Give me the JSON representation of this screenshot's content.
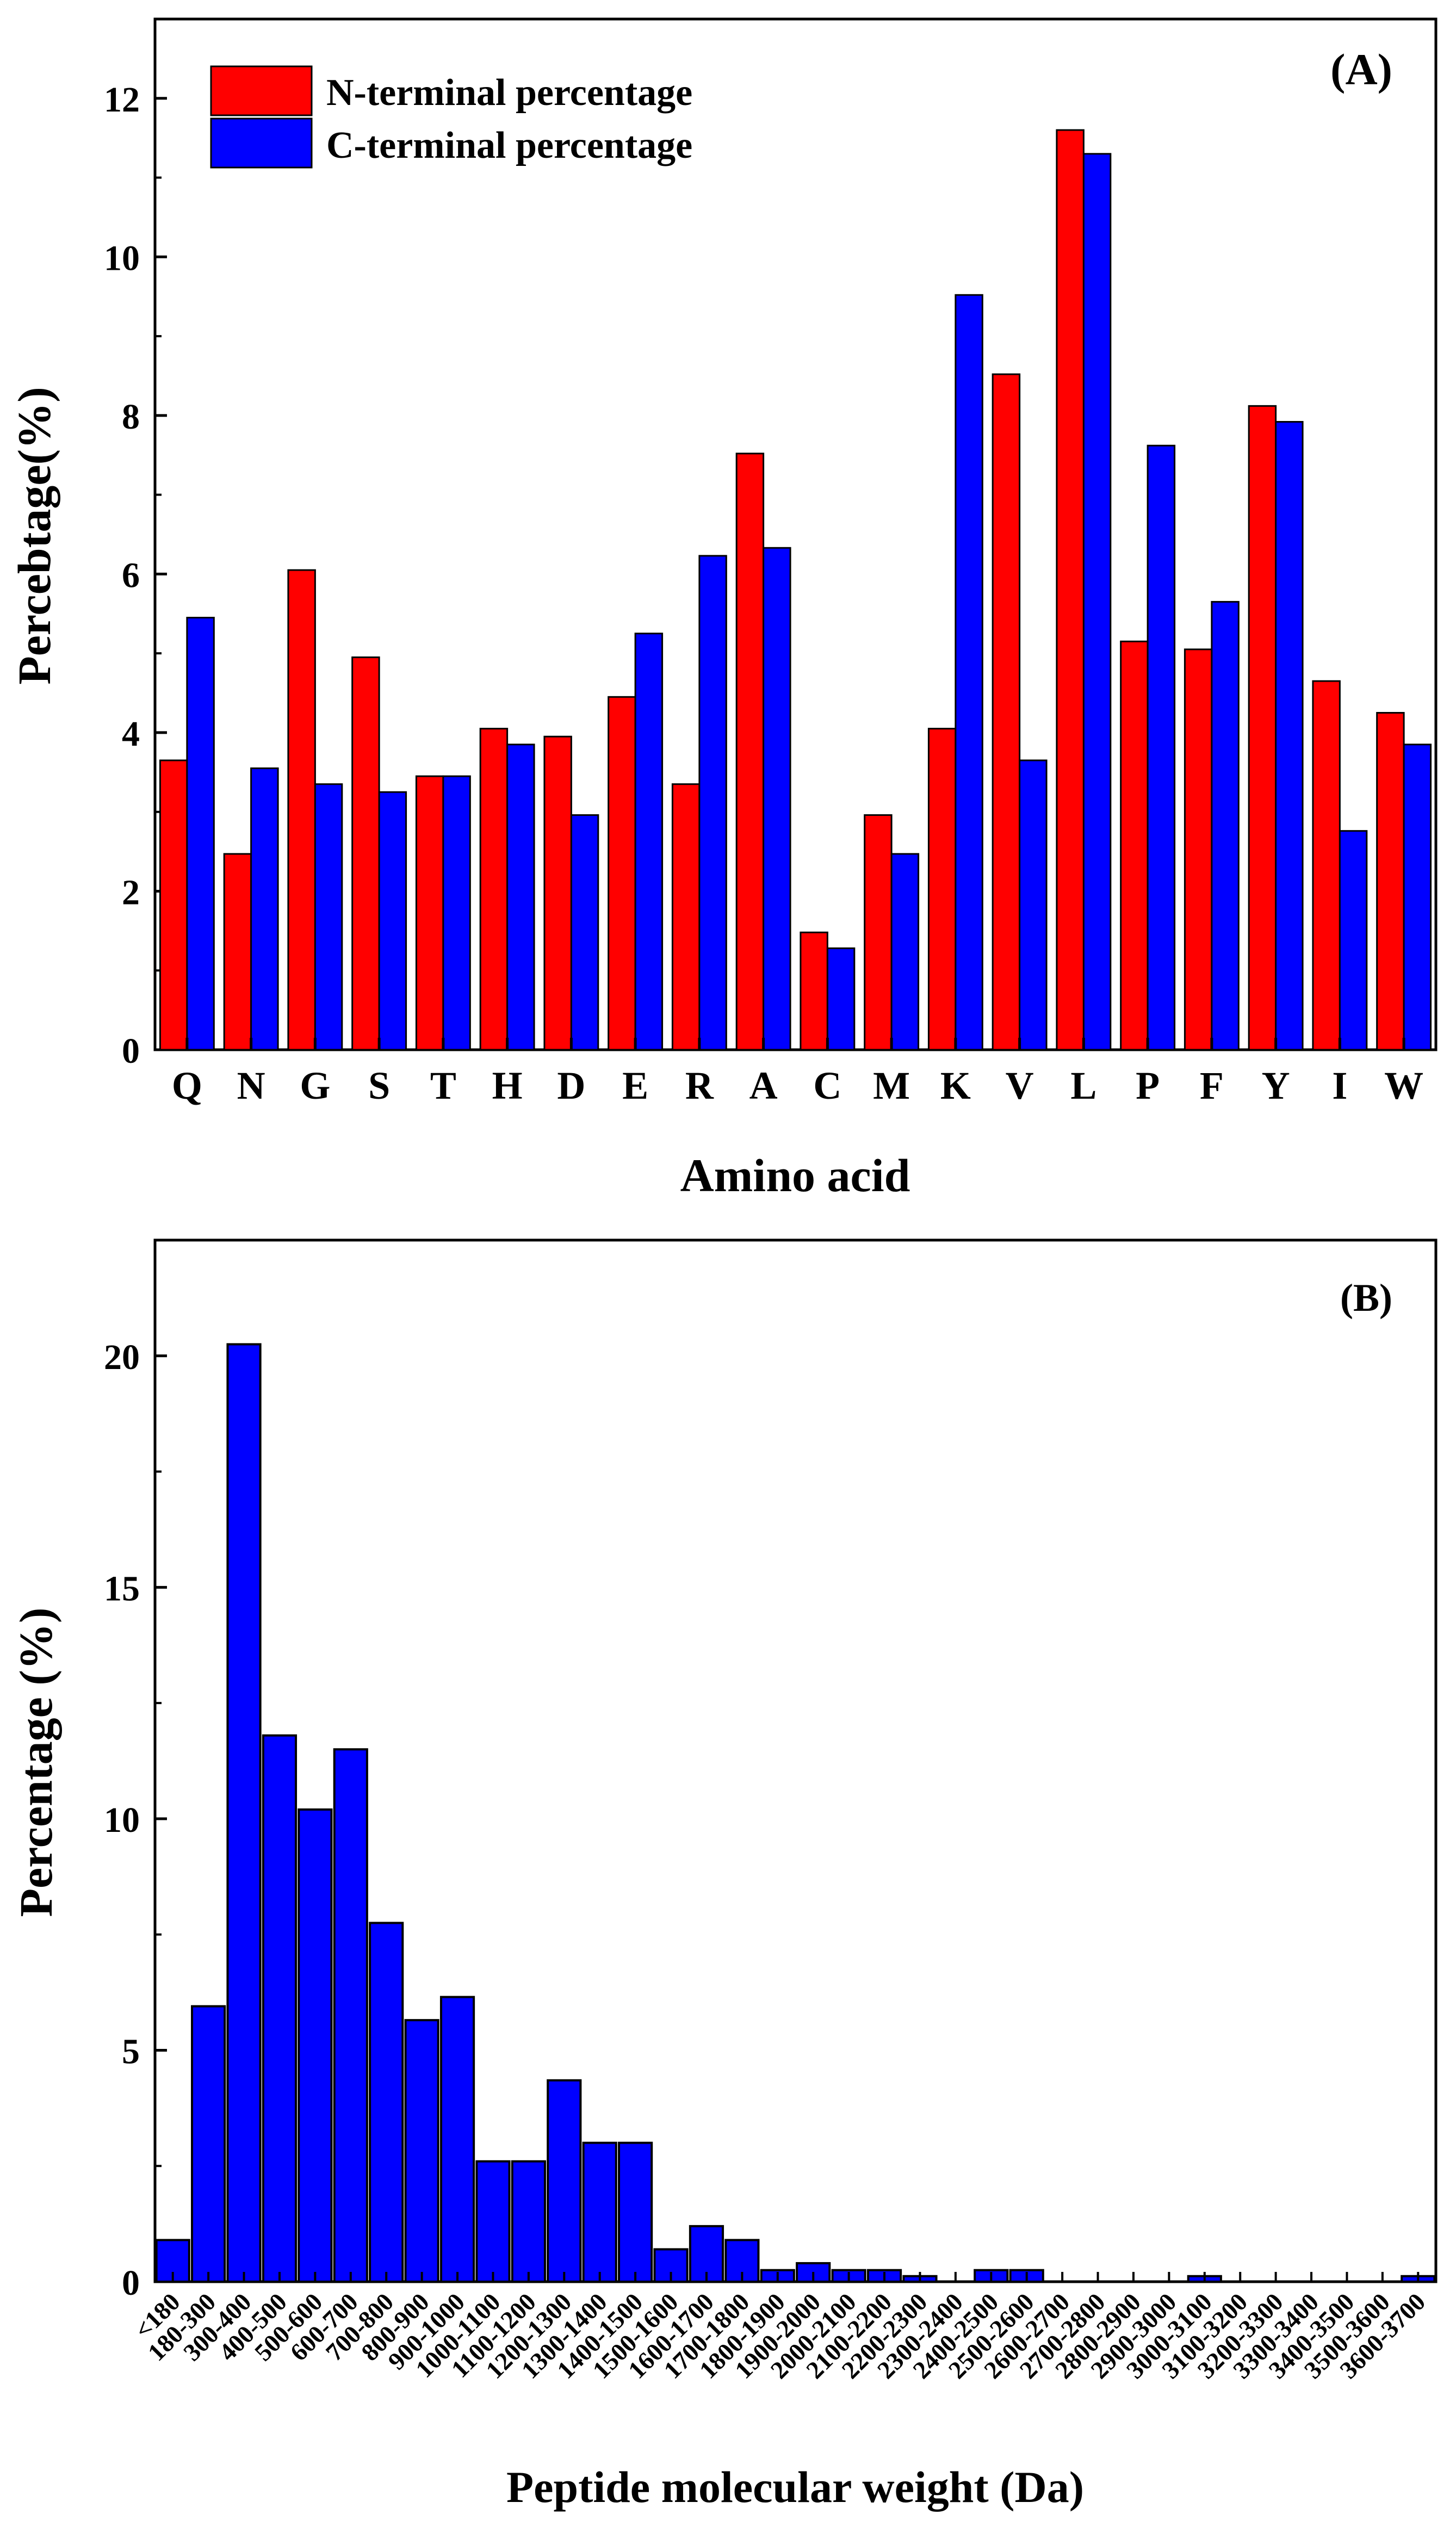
{
  "chart_data": [
    {
      "panel": "(A)",
      "type": "bar",
      "xlabel": "Amino acid",
      "ylabel": "Percebtage(%)",
      "ylim": [
        0,
        13
      ],
      "yticks": [
        0,
        2,
        4,
        6,
        8,
        10,
        12
      ],
      "categories": [
        "Q",
        "N",
        "G",
        "S",
        "T",
        "H",
        "D",
        "E",
        "R",
        "A",
        "C",
        "M",
        "K",
        "V",
        "L",
        "P",
        "F",
        "Y",
        "I",
        "W"
      ],
      "legend_position": "top-left",
      "series": [
        {
          "name": "N-terminal percentage",
          "color": "#ff0000",
          "values": [
            3.65,
            2.47,
            6.05,
            4.95,
            3.45,
            4.05,
            3.95,
            4.45,
            3.35,
            7.52,
            1.48,
            2.96,
            4.05,
            8.52,
            11.6,
            5.15,
            5.05,
            8.12,
            4.65,
            4.25
          ]
        },
        {
          "name": "C-terminal percentage",
          "color": "#0000ff",
          "values": [
            5.45,
            3.55,
            3.35,
            3.25,
            3.45,
            3.85,
            2.96,
            5.25,
            6.23,
            6.33,
            1.28,
            2.47,
            9.52,
            3.65,
            11.3,
            7.62,
            5.65,
            7.92,
            2.76,
            3.85
          ]
        }
      ]
    },
    {
      "panel": "(B)",
      "type": "bar",
      "xlabel": "Peptide molecular weight (Da)",
      "ylabel": "Percentage (%)",
      "ylim": [
        0,
        22.5
      ],
      "yticks": [
        0,
        5,
        10,
        15,
        20
      ],
      "bar_color": "#0000ff",
      "categories": [
        "<180",
        "180-300",
        "300-400",
        "400-500",
        "500-600",
        "600-700",
        "700-800",
        "800-900",
        "900-1000",
        "1000-1100",
        "1100-1200",
        "1200-1300",
        "1300-1400",
        "1400-1500",
        "1500-1600",
        "1600-1700",
        "1700-1800",
        "1800-1900",
        "1900-2000",
        "2000-2100",
        "2100-2200",
        "2200-2300",
        "2300-2400",
        "2400-2500",
        "2500-2600",
        "2600-2700",
        "2700-2800",
        "2800-2900",
        "2900-3000",
        "3000-3100",
        "3100-3200",
        "3200-3300",
        "3300-3400",
        "3400-3500",
        "3500-3600",
        "3600-3700"
      ],
      "values": [
        0.9,
        5.95,
        20.25,
        11.8,
        10.2,
        11.5,
        7.75,
        5.65,
        6.15,
        2.6,
        2.6,
        4.35,
        3.0,
        3.0,
        0.7,
        1.2,
        0.9,
        0.25,
        0.4,
        0.25,
        0.25,
        0.12,
        0,
        0.25,
        0.25,
        0,
        0,
        0,
        0,
        0.12,
        0,
        0,
        0,
        0,
        0,
        0.12
      ]
    }
  ]
}
